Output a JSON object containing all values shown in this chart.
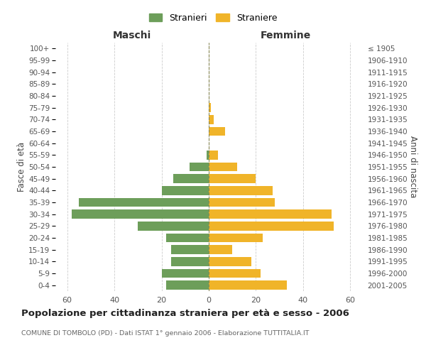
{
  "age_groups": [
    "0-4",
    "5-9",
    "10-14",
    "15-19",
    "20-24",
    "25-29",
    "30-34",
    "35-39",
    "40-44",
    "45-49",
    "50-54",
    "55-59",
    "60-64",
    "65-69",
    "70-74",
    "75-79",
    "80-84",
    "85-89",
    "90-94",
    "95-99",
    "100+"
  ],
  "birth_years": [
    "2001-2005",
    "1996-2000",
    "1991-1995",
    "1986-1990",
    "1981-1985",
    "1976-1980",
    "1971-1975",
    "1966-1970",
    "1961-1965",
    "1956-1960",
    "1951-1955",
    "1946-1950",
    "1941-1945",
    "1936-1940",
    "1931-1935",
    "1926-1930",
    "1921-1925",
    "1916-1920",
    "1911-1915",
    "1906-1910",
    "≤ 1905"
  ],
  "males": [
    18,
    20,
    16,
    16,
    18,
    30,
    58,
    55,
    20,
    15,
    8,
    1,
    0,
    0,
    0,
    0,
    0,
    0,
    0,
    0,
    0
  ],
  "females": [
    33,
    22,
    18,
    10,
    23,
    53,
    52,
    28,
    27,
    20,
    12,
    4,
    0,
    7,
    2,
    1,
    0,
    0,
    0,
    0,
    0
  ],
  "male_color": "#6d9e5a",
  "female_color": "#f0b429",
  "background_color": "#ffffff",
  "grid_color": "#cccccc",
  "title": "Popolazione per cittadinanza straniera per età e sesso - 2006",
  "subtitle": "COMUNE DI TOMBOLO (PD) - Dati ISTAT 1° gennaio 2006 - Elaborazione TUTTITALIA.IT",
  "xlabel_left": "Maschi",
  "xlabel_right": "Femmine",
  "ylabel_left": "Fasce di età",
  "ylabel_right": "Anni di nascita",
  "legend_males": "Stranieri",
  "legend_females": "Straniere",
  "xlim": 65,
  "bar_height": 0.75
}
